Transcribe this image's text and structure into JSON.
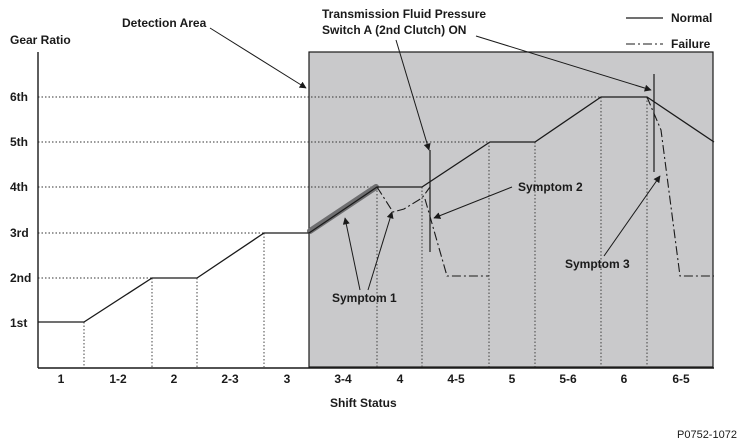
{
  "labels": {
    "y_axis": "Gear Ratio",
    "x_axis": "Shift Status",
    "detection_area": "Detection Area",
    "pressure_switch_line1": "Transmission Fluid Pressure",
    "pressure_switch_line2": "Switch A (2nd Clutch) ON",
    "symptom_1": "Symptom 1",
    "symptom_2": "Symptom 2",
    "symptom_3": "Symptom 3",
    "figure_code": "P0752-1072"
  },
  "legend": {
    "normal": "Normal",
    "failure": "Failure"
  },
  "gear_ticks": [
    "6th",
    "5th",
    "4th",
    "3rd",
    "2nd",
    "1st"
  ],
  "shift_status": [
    "1",
    "1-2",
    "2",
    "2-3",
    "3",
    "3-4",
    "4",
    "4-5",
    "5",
    "5-6",
    "6",
    "6-5"
  ],
  "colors": {
    "detection_fill": "#c9c9cb",
    "line": "#1a1a1a",
    "highlight": "#6e6e70"
  }
}
